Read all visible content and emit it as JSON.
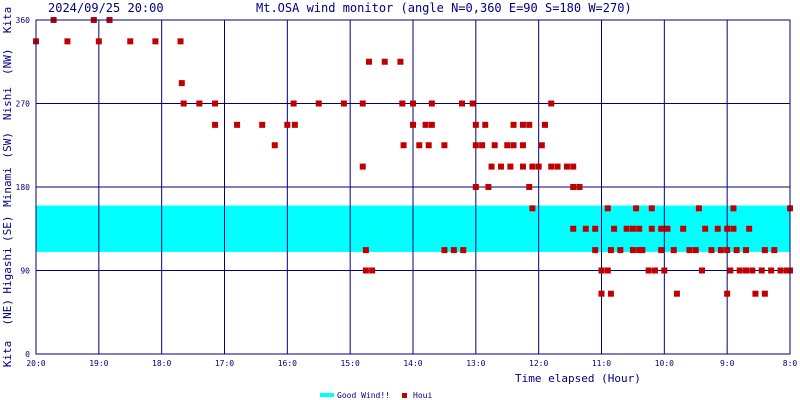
{
  "header": {
    "datetime": "2024/09/25 20:00",
    "title": "Mt.OSA wind monitor (angle N=0,360 E=90 S=180 W=270)"
  },
  "y_direction_labels": [
    "Kita",
    "(NE)",
    "Higashi",
    "(SE)",
    "Minami",
    "(SW)",
    "Nishi",
    "(NW)",
    "Kita"
  ],
  "legend": {
    "items": [
      {
        "label": "Good Wind!!",
        "color": "#00ffff"
      },
      {
        "label": "Houi",
        "color": "#c00000"
      }
    ]
  },
  "chart_data": {
    "type": "scatter",
    "xlabel": "Time elapsed (Hour)",
    "x_ticks": [
      "20:0",
      "19:0",
      "18:0",
      "17:0",
      "16:0",
      "15:0",
      "14:0",
      "13:0",
      "12:0",
      "11:0",
      "10:0",
      "9:0",
      "8:0"
    ],
    "x_range_hours_elapsed": [
      0,
      12
    ],
    "y_ticks": [
      "0",
      "90",
      "180",
      "270",
      "360"
    ],
    "ylim": [
      0,
      360
    ],
    "good_wind_band": {
      "from": 110,
      "to": 160,
      "color": "#00ffff"
    },
    "grid": true,
    "colors": {
      "grid": "#000080",
      "points": "#c00000",
      "band": "#00ffff"
    },
    "series": [
      {
        "name": "Houi",
        "points": [
          [
            0.28,
            360
          ],
          [
            0.92,
            360
          ],
          [
            1.17,
            360
          ],
          [
            0.0,
            337
          ],
          [
            0.5,
            337
          ],
          [
            1.0,
            337
          ],
          [
            1.5,
            337
          ],
          [
            1.9,
            337
          ],
          [
            2.3,
            337
          ],
          [
            2.32,
            292
          ],
          [
            2.35,
            270
          ],
          [
            2.6,
            270
          ],
          [
            2.85,
            270
          ],
          [
            2.85,
            247
          ],
          [
            3.2,
            247
          ],
          [
            3.6,
            247
          ],
          [
            4.0,
            247
          ],
          [
            4.12,
            247
          ],
          [
            3.8,
            225
          ],
          [
            4.1,
            270
          ],
          [
            4.5,
            270
          ],
          [
            4.9,
            270
          ],
          [
            5.2,
            270
          ],
          [
            5.2,
            202
          ],
          [
            5.25,
            112
          ],
          [
            5.25,
            90
          ],
          [
            5.35,
            90
          ],
          [
            5.3,
            315
          ],
          [
            5.55,
            315
          ],
          [
            5.8,
            315
          ],
          [
            5.83,
            270
          ],
          [
            6.0,
            270
          ],
          [
            6.3,
            270
          ],
          [
            5.85,
            225
          ],
          [
            6.1,
            225
          ],
          [
            6.25,
            225
          ],
          [
            6.0,
            247
          ],
          [
            6.2,
            247
          ],
          [
            6.3,
            247
          ],
          [
            6.5,
            225
          ],
          [
            6.5,
            112
          ],
          [
            6.65,
            112
          ],
          [
            6.8,
            112
          ],
          [
            6.78,
            270
          ],
          [
            6.95,
            270
          ],
          [
            7.0,
            247
          ],
          [
            7.15,
            247
          ],
          [
            7.0,
            225
          ],
          [
            7.1,
            225
          ],
          [
            7.0,
            180
          ],
          [
            7.2,
            180
          ],
          [
            7.25,
            202
          ],
          [
            7.4,
            202
          ],
          [
            7.55,
            202
          ],
          [
            7.3,
            225
          ],
          [
            7.5,
            225
          ],
          [
            7.6,
            225
          ],
          [
            7.75,
            225
          ],
          [
            7.6,
            247
          ],
          [
            7.75,
            247
          ],
          [
            7.85,
            247
          ],
          [
            7.75,
            202
          ],
          [
            7.9,
            202
          ],
          [
            7.85,
            180
          ],
          [
            7.9,
            157
          ],
          [
            8.0,
            202
          ],
          [
            8.2,
            202
          ],
          [
            8.05,
            225
          ],
          [
            8.1,
            247
          ],
          [
            8.2,
            270
          ],
          [
            8.3,
            202
          ],
          [
            8.45,
            202
          ],
          [
            8.55,
            202
          ],
          [
            8.55,
            180
          ],
          [
            8.65,
            180
          ],
          [
            8.55,
            135
          ],
          [
            8.75,
            135
          ],
          [
            8.9,
            135
          ],
          [
            8.9,
            112
          ],
          [
            9.15,
            112
          ],
          [
            9.1,
            157
          ],
          [
            9.0,
            90
          ],
          [
            9.1,
            90
          ],
          [
            9.0,
            65
          ],
          [
            9.15,
            65
          ],
          [
            9.2,
            135
          ],
          [
            9.4,
            135
          ],
          [
            9.3,
            112
          ],
          [
            9.5,
            112
          ],
          [
            9.6,
            112
          ],
          [
            9.5,
            135
          ],
          [
            9.6,
            135
          ],
          [
            9.55,
            157
          ],
          [
            9.8,
            157
          ],
          [
            9.65,
            112
          ],
          [
            9.75,
            90
          ],
          [
            9.8,
            135
          ],
          [
            9.95,
            135
          ],
          [
            9.85,
            90
          ],
          [
            10.0,
            90
          ],
          [
            9.95,
            112
          ],
          [
            10.15,
            112
          ],
          [
            10.05,
            135
          ],
          [
            10.3,
            135
          ],
          [
            10.2,
            65
          ],
          [
            10.4,
            112
          ],
          [
            10.5,
            112
          ],
          [
            10.55,
            157
          ],
          [
            10.6,
            90
          ],
          [
            10.65,
            135
          ],
          [
            10.75,
            112
          ],
          [
            10.9,
            112
          ],
          [
            11.0,
            112
          ],
          [
            10.85,
            135
          ],
          [
            11.0,
            135
          ],
          [
            11.1,
            135
          ],
          [
            11.0,
            65
          ],
          [
            11.05,
            90
          ],
          [
            11.2,
            90
          ],
          [
            11.3,
            90
          ],
          [
            11.1,
            157
          ],
          [
            11.15,
            112
          ],
          [
            11.3,
            112
          ],
          [
            11.35,
            135
          ],
          [
            11.4,
            90
          ],
          [
            11.55,
            90
          ],
          [
            11.6,
            112
          ],
          [
            11.45,
            65
          ],
          [
            11.6,
            65
          ],
          [
            11.7,
            90
          ],
          [
            11.75,
            112
          ],
          [
            11.85,
            90
          ],
          [
            11.95,
            90
          ],
          [
            12.0,
            157
          ],
          [
            12.0,
            90
          ]
        ]
      }
    ]
  }
}
